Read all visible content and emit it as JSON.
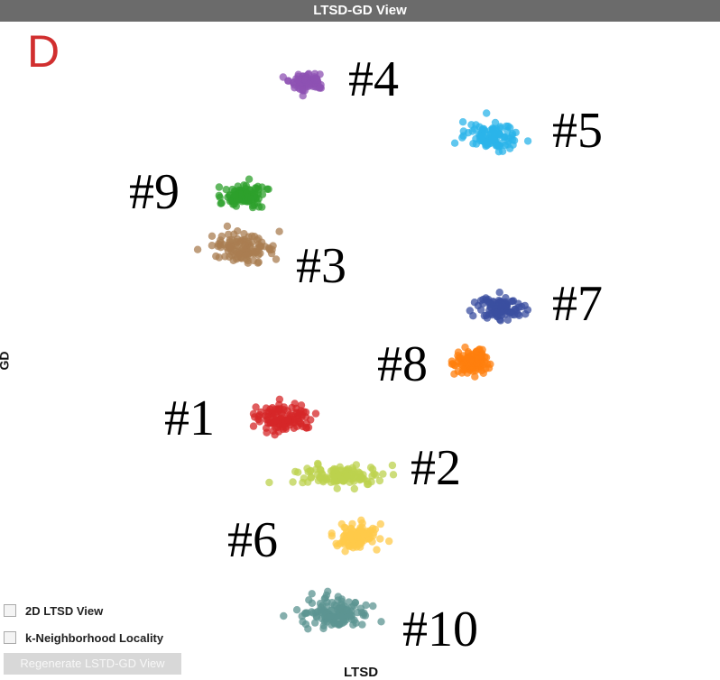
{
  "window": {
    "title": "LTSD-GD View"
  },
  "panel_label": "D",
  "chart_data": {
    "type": "scatter",
    "xlabel": "LTSD",
    "ylabel": "GD",
    "grid": false,
    "clusters": [
      {
        "label": "#1",
        "color": "#d62728",
        "center": [
          315,
          463
        ],
        "spread": [
          30,
          14
        ],
        "n": 110
      },
      {
        "label": "#2",
        "color": "#bcd14e",
        "center": [
          375,
          528
        ],
        "spread": [
          40,
          11
        ],
        "n": 120
      },
      {
        "label": "#3",
        "color": "#a97e52",
        "center": [
          270,
          275
        ],
        "spread": [
          32,
          13
        ],
        "n": 110
      },
      {
        "label": "#4",
        "color": "#8e52b3",
        "center": [
          340,
          90
        ],
        "spread": [
          18,
          9
        ],
        "n": 90
      },
      {
        "label": "#5",
        "color": "#2bb4ea",
        "center": [
          548,
          152
        ],
        "spread": [
          28,
          12
        ],
        "n": 100
      },
      {
        "label": "#6",
        "color": "#ffc94a",
        "center": [
          393,
          594
        ],
        "spread": [
          22,
          14
        ],
        "n": 100
      },
      {
        "label": "#7",
        "color": "#3b4fa0",
        "center": [
          556,
          343
        ],
        "spread": [
          22,
          12
        ],
        "n": 100
      },
      {
        "label": "#8",
        "color": "#ff7f0e",
        "center": [
          520,
          401
        ],
        "spread": [
          18,
          13
        ],
        "n": 100
      },
      {
        "label": "#9",
        "color": "#2ea02c",
        "center": [
          270,
          216
        ],
        "spread": [
          22,
          12
        ],
        "n": 100
      },
      {
        "label": "#10",
        "color": "#5c9492",
        "center": [
          372,
          680
        ],
        "spread": [
          35,
          14
        ],
        "n": 130
      }
    ]
  },
  "controls": {
    "checkbox_2d": "2D LTSD View",
    "checkbox_knl": "k-Neighborhood Locality",
    "regenerate": "Regenerate LSTD-GD View"
  }
}
